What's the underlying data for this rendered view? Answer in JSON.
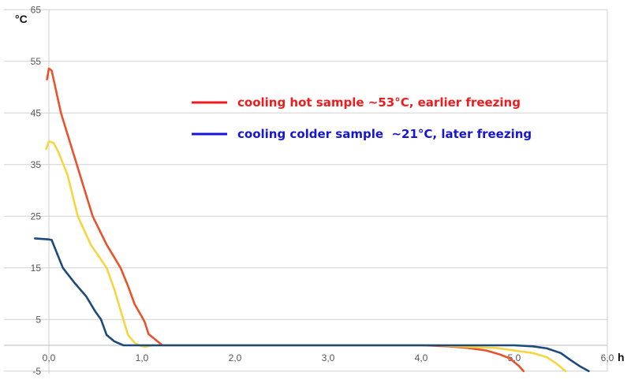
{
  "chart_data": {
    "type": "line",
    "title": "",
    "ylabel": "°C",
    "xlabel": "h",
    "xlim": [
      0,
      6
    ],
    "ylim": [
      -5,
      65
    ],
    "grid": true,
    "x_ticks": [
      "0,0",
      "1,0",
      "2,0",
      "3,0",
      "4,0",
      "5,0",
      "6,0"
    ],
    "x_tick_values": [
      0,
      1,
      2,
      3,
      4,
      5,
      6
    ],
    "y_ticks": [
      "65",
      "55",
      "45",
      "35",
      "25",
      "15",
      "5",
      "-5"
    ],
    "y_tick_values": [
      65,
      55,
      45,
      35,
      25,
      15,
      5,
      -5
    ],
    "legend_placement": "top-right",
    "legend": [
      {
        "label": "cooling hot sample ~53°C, earlier freezing",
        "color": "#ee1c1c"
      },
      {
        "label": "cooling colder sample  ~21°C, later freezing",
        "color": "#1515d8"
      }
    ],
    "series": [
      {
        "color": "#e8532b",
        "points": [
          [
            -0.02,
            51.5
          ],
          [
            0,
            53.6
          ],
          [
            0.03,
            53.2
          ],
          [
            0.13,
            45
          ],
          [
            0.3,
            35
          ],
          [
            0.47,
            25
          ],
          [
            0.62,
            19.5
          ],
          [
            0.77,
            15
          ],
          [
            0.85,
            11.5
          ],
          [
            0.92,
            8
          ],
          [
            1.0,
            5.5
          ],
          [
            1.03,
            4.5
          ],
          [
            1.07,
            2.2
          ],
          [
            1.15,
            1
          ],
          [
            1.22,
            0
          ],
          [
            2,
            0
          ],
          [
            3,
            0
          ],
          [
            4.0,
            0
          ],
          [
            4.3,
            -0.2
          ],
          [
            4.5,
            -0.5
          ],
          [
            4.7,
            -1
          ],
          [
            4.85,
            -1.8
          ],
          [
            4.95,
            -2.5
          ],
          [
            5.05,
            -4
          ],
          [
            5.1,
            -5
          ]
        ]
      },
      {
        "color": "#f5d640",
        "points": [
          [
            -0.03,
            38
          ],
          [
            0,
            39.5
          ],
          [
            0.05,
            39.2
          ],
          [
            0.1,
            37.5
          ],
          [
            0.2,
            33
          ],
          [
            0.31,
            25
          ],
          [
            0.45,
            19.5
          ],
          [
            0.62,
            15
          ],
          [
            0.7,
            11
          ],
          [
            0.75,
            8
          ],
          [
            0.8,
            5
          ],
          [
            0.85,
            2
          ],
          [
            0.92,
            0.5
          ],
          [
            0.97,
            0
          ],
          [
            1.03,
            -0.3
          ],
          [
            1.12,
            0
          ],
          [
            2,
            0
          ],
          [
            3,
            0
          ],
          [
            4.2,
            0
          ],
          [
            4.5,
            -0.3
          ],
          [
            4.8,
            -0.5
          ],
          [
            5.0,
            -1
          ],
          [
            5.2,
            -1.5
          ],
          [
            5.35,
            -2.3
          ],
          [
            5.45,
            -3.5
          ],
          [
            5.55,
            -5
          ]
        ]
      },
      {
        "color": "#1d4a7c",
        "points": [
          [
            -0.15,
            20.7
          ],
          [
            0,
            20.5
          ],
          [
            0.03,
            20.4
          ],
          [
            0.15,
            15
          ],
          [
            0.28,
            12
          ],
          [
            0.4,
            9.5
          ],
          [
            0.5,
            6.5
          ],
          [
            0.56,
            5
          ],
          [
            0.62,
            2
          ],
          [
            0.7,
            0.8
          ],
          [
            0.8,
            0
          ],
          [
            2,
            0
          ],
          [
            3,
            0
          ],
          [
            4,
            0
          ],
          [
            5.0,
            0
          ],
          [
            5.2,
            -0.2
          ],
          [
            5.35,
            -0.6
          ],
          [
            5.5,
            -1.5
          ],
          [
            5.6,
            -2.8
          ],
          [
            5.7,
            -4
          ],
          [
            5.8,
            -5
          ]
        ]
      }
    ]
  }
}
